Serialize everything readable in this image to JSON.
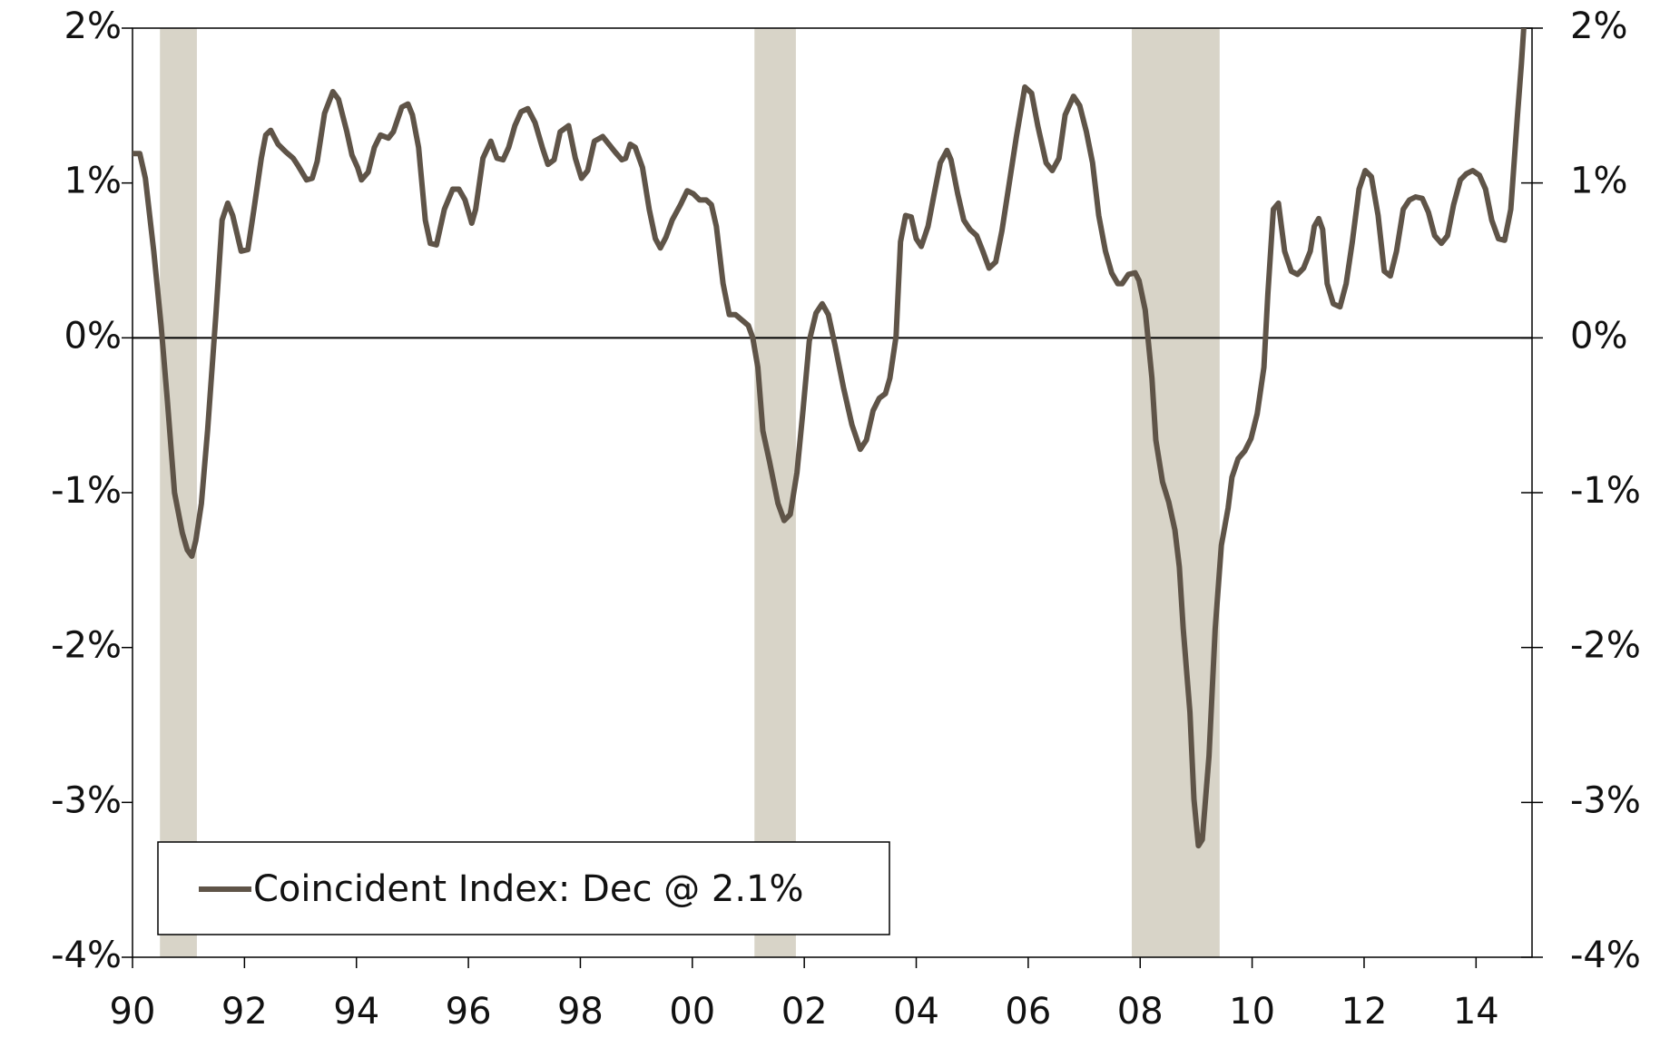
{
  "chart_data": {
    "type": "line",
    "x": [
      1990.0,
      1990.13,
      1990.23,
      1990.38,
      1990.51,
      1990.62,
      1990.75,
      1990.89,
      1990.98,
      1991.06,
      1991.13,
      1991.23,
      1991.34,
      1991.49,
      1991.6,
      1991.7,
      1991.79,
      1991.94,
      1992.06,
      1992.17,
      1992.3,
      1992.38,
      1992.47,
      1992.6,
      1992.74,
      1992.87,
      1992.96,
      1993.11,
      1993.21,
      1993.3,
      1993.43,
      1993.58,
      1993.68,
      1993.83,
      1993.92,
      1994.02,
      1994.09,
      1994.21,
      1994.32,
      1994.43,
      1994.57,
      1994.66,
      1994.81,
      1994.92,
      1995.0,
      1995.11,
      1995.23,
      1995.32,
      1995.43,
      1995.57,
      1995.72,
      1995.83,
      1995.94,
      1996.06,
      1996.13,
      1996.26,
      1996.4,
      1996.51,
      1996.62,
      1996.72,
      1996.83,
      1996.94,
      1997.06,
      1997.19,
      1997.32,
      1997.42,
      1997.53,
      1997.64,
      1997.79,
      1997.91,
      1998.02,
      1998.13,
      1998.25,
      1998.4,
      1998.51,
      1998.62,
      1998.74,
      1998.81,
      1998.89,
      1998.98,
      1999.11,
      1999.23,
      1999.34,
      1999.43,
      1999.53,
      1999.64,
      1999.79,
      1999.91,
      2000.02,
      2000.13,
      2000.25,
      2000.34,
      2000.43,
      2000.55,
      2000.66,
      2000.77,
      2000.87,
      2001.0,
      2001.08,
      2001.17,
      2001.26,
      2001.38,
      2001.53,
      2001.64,
      2001.75,
      2001.87,
      2001.98,
      2002.09,
      2002.21,
      2002.32,
      2002.43,
      2002.55,
      2002.7,
      2002.85,
      2003.0,
      2003.11,
      2003.23,
      2003.34,
      2003.45,
      2003.53,
      2003.64,
      2003.72,
      2003.81,
      2003.91,
      2004.0,
      2004.09,
      2004.21,
      2004.32,
      2004.43,
      2004.55,
      2004.62,
      2004.74,
      2004.85,
      2004.96,
      2005.08,
      2005.19,
      2005.3,
      2005.42,
      2005.53,
      2005.68,
      2005.79,
      2005.94,
      2006.06,
      2006.17,
      2006.32,
      2006.43,
      2006.55,
      2006.66,
      2006.81,
      2006.92,
      2007.04,
      2007.15,
      2007.26,
      2007.38,
      2007.49,
      2007.6,
      2007.68,
      2007.79,
      2007.91,
      2007.98,
      2008.09,
      2008.21,
      2008.28,
      2008.4,
      2008.51,
      2008.62,
      2008.7,
      2008.77,
      2008.89,
      2008.96,
      2009.04,
      2009.11,
      2009.23,
      2009.34,
      2009.45,
      2009.57,
      2009.64,
      2009.75,
      2009.87,
      2009.98,
      2010.09,
      2010.21,
      2010.28,
      2010.38,
      2010.47,
      2010.58,
      2010.7,
      2010.81,
      2010.92,
      2011.04,
      2011.11,
      2011.19,
      2011.26,
      2011.34,
      2011.45,
      2011.57,
      2011.68,
      2011.79,
      2011.91,
      2012.02,
      2012.13,
      2012.25,
      2012.36,
      2012.47,
      2012.58,
      2012.7,
      2012.81,
      2012.92,
      2013.04,
      2013.15,
      2013.26,
      2013.38,
      2013.49,
      2013.6,
      2013.72,
      2013.83,
      2013.94,
      2014.06,
      2014.17,
      2014.28,
      2014.4,
      2014.51,
      2014.62,
      2014.74,
      2014.81,
      2014.87
    ],
    "series": [
      {
        "name": "Coincident Index: Dec @ 2.1%",
        "color": "#5f5448",
        "values": [
          1.19,
          1.19,
          1.03,
          0.56,
          0.08,
          -0.39,
          -1.0,
          -1.26,
          -1.37,
          -1.41,
          -1.31,
          -1.07,
          -0.6,
          0.15,
          0.76,
          0.87,
          0.79,
          0.56,
          0.57,
          0.83,
          1.16,
          1.31,
          1.34,
          1.25,
          1.2,
          1.16,
          1.11,
          1.02,
          1.03,
          1.14,
          1.45,
          1.59,
          1.54,
          1.33,
          1.18,
          1.1,
          1.02,
          1.07,
          1.23,
          1.31,
          1.29,
          1.33,
          1.49,
          1.51,
          1.44,
          1.23,
          0.76,
          0.61,
          0.6,
          0.83,
          0.96,
          0.96,
          0.89,
          0.74,
          0.83,
          1.16,
          1.27,
          1.16,
          1.15,
          1.23,
          1.37,
          1.46,
          1.48,
          1.39,
          1.23,
          1.12,
          1.15,
          1.33,
          1.37,
          1.16,
          1.03,
          1.08,
          1.27,
          1.3,
          1.25,
          1.2,
          1.15,
          1.16,
          1.25,
          1.23,
          1.1,
          0.83,
          0.64,
          0.58,
          0.65,
          0.76,
          0.86,
          0.95,
          0.93,
          0.89,
          0.89,
          0.86,
          0.72,
          0.35,
          0.15,
          0.15,
          0.12,
          0.08,
          0,
          -0.19,
          -0.6,
          -0.8,
          -1.07,
          -1.18,
          -1.14,
          -0.87,
          -0.46,
          -0.02,
          0.16,
          0.22,
          0.15,
          -0.05,
          -0.32,
          -0.56,
          -0.72,
          -0.66,
          -0.47,
          -0.39,
          -0.36,
          -0.26,
          0.01,
          0.62,
          0.79,
          0.78,
          0.64,
          0.59,
          0.72,
          0.93,
          1.13,
          1.21,
          1.15,
          0.93,
          0.76,
          0.7,
          0.66,
          0.56,
          0.45,
          0.49,
          0.69,
          1.04,
          1.3,
          1.62,
          1.58,
          1.37,
          1.13,
          1.08,
          1.16,
          1.44,
          1.56,
          1.5,
          1.33,
          1.13,
          0.79,
          0.56,
          0.42,
          0.35,
          0.35,
          0.41,
          0.42,
          0.37,
          0.18,
          -0.26,
          -0.66,
          -0.93,
          -1.06,
          -1.24,
          -1.48,
          -1.88,
          -2.42,
          -2.98,
          -3.28,
          -3.24,
          -2.7,
          -1.88,
          -1.34,
          -1.1,
          -0.9,
          -0.78,
          -0.73,
          -0.65,
          -0.49,
          -0.19,
          0.28,
          0.83,
          0.87,
          0.56,
          0.43,
          0.41,
          0.45,
          0.56,
          0.72,
          0.77,
          0.7,
          0.35,
          0.22,
          0.2,
          0.35,
          0.62,
          0.96,
          1.08,
          1.04,
          0.79,
          0.43,
          0.4,
          0.56,
          0.83,
          0.89,
          0.91,
          0.9,
          0.81,
          0.66,
          0.61,
          0.66,
          0.86,
          1.02,
          1.06,
          1.08,
          1.05,
          0.96,
          0.76,
          0.64,
          0.63,
          0.83,
          1.44,
          1.77,
          2.1
        ]
      }
    ],
    "shaded_periods": [
      [
        1990.49,
        1991.15
      ],
      [
        2001.11,
        2001.85
      ],
      [
        2007.85,
        2009.42
      ]
    ],
    "shade_color": "#d8d4c8",
    "xlim": [
      1990,
      2015
    ],
    "xticks": [
      {
        "value": 1990,
        "label": "90"
      },
      {
        "value": 1992,
        "label": "92"
      },
      {
        "value": 1994,
        "label": "94"
      },
      {
        "value": 1996,
        "label": "96"
      },
      {
        "value": 1998,
        "label": "98"
      },
      {
        "value": 2000,
        "label": "00"
      },
      {
        "value": 2002,
        "label": "02"
      },
      {
        "value": 2004,
        "label": "04"
      },
      {
        "value": 2006,
        "label": "06"
      },
      {
        "value": 2008,
        "label": "08"
      },
      {
        "value": 2010,
        "label": "10"
      },
      {
        "value": 2012,
        "label": "12"
      },
      {
        "value": 2014,
        "label": "14"
      }
    ],
    "ylim": [
      -4,
      2
    ],
    "yticks": [
      {
        "value": -4,
        "label": "-4%"
      },
      {
        "value": -3,
        "label": "-3%"
      },
      {
        "value": -2,
        "label": "-2%"
      },
      {
        "value": -1,
        "label": "-1%"
      },
      {
        "value": 0,
        "label": "0%"
      },
      {
        "value": 1,
        "label": "1%"
      },
      {
        "value": 2,
        "label": "2%"
      }
    ],
    "y2lim": [
      -4,
      2
    ],
    "y2ticks": [
      {
        "value": -4,
        "label": "-4%"
      },
      {
        "value": -3,
        "label": "-3%"
      },
      {
        "value": -2,
        "label": "-2%"
      },
      {
        "value": -1,
        "label": "-1%"
      },
      {
        "value": 0,
        "label": "0%"
      },
      {
        "value": 1,
        "label": "1%"
      },
      {
        "value": 2,
        "label": "2%"
      }
    ],
    "legend": "bottom-left"
  }
}
